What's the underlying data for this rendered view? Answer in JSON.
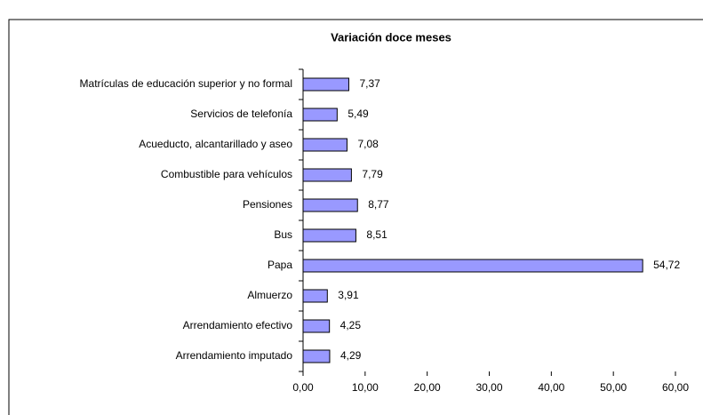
{
  "chart_data": {
    "type": "bar",
    "orientation": "horizontal",
    "title": "Variación doce meses",
    "categories": [
      "Matrículas de educación superior y no formal",
      "Servicios de telefonía",
      "Acueducto, alcantarillado y aseo",
      "Combustible para vehículos",
      "Pensiones",
      "Bus",
      "Papa",
      "Almuerzo",
      "Arrendamiento efectivo",
      "Arrendamiento imputado"
    ],
    "values": [
      7.37,
      5.49,
      7.08,
      7.79,
      8.77,
      8.51,
      54.72,
      3.91,
      4.25,
      4.29
    ],
    "value_labels": [
      "7,37",
      "5,49",
      "7,08",
      "7,79",
      "8,77",
      "8,51",
      "54,72",
      "3,91",
      "4,25",
      "4,29"
    ],
    "color": "#9999ff",
    "xlim": [
      0,
      60
    ],
    "xticks": [
      {
        "value": 0,
        "label": "0,00"
      },
      {
        "value": 10,
        "label": "10,00"
      },
      {
        "value": 20,
        "label": "20,00"
      },
      {
        "value": 30,
        "label": "30,00"
      },
      {
        "value": 40,
        "label": "40,00"
      },
      {
        "value": 50,
        "label": "50,00"
      },
      {
        "value": 60,
        "label": "60,00"
      }
    ]
  }
}
